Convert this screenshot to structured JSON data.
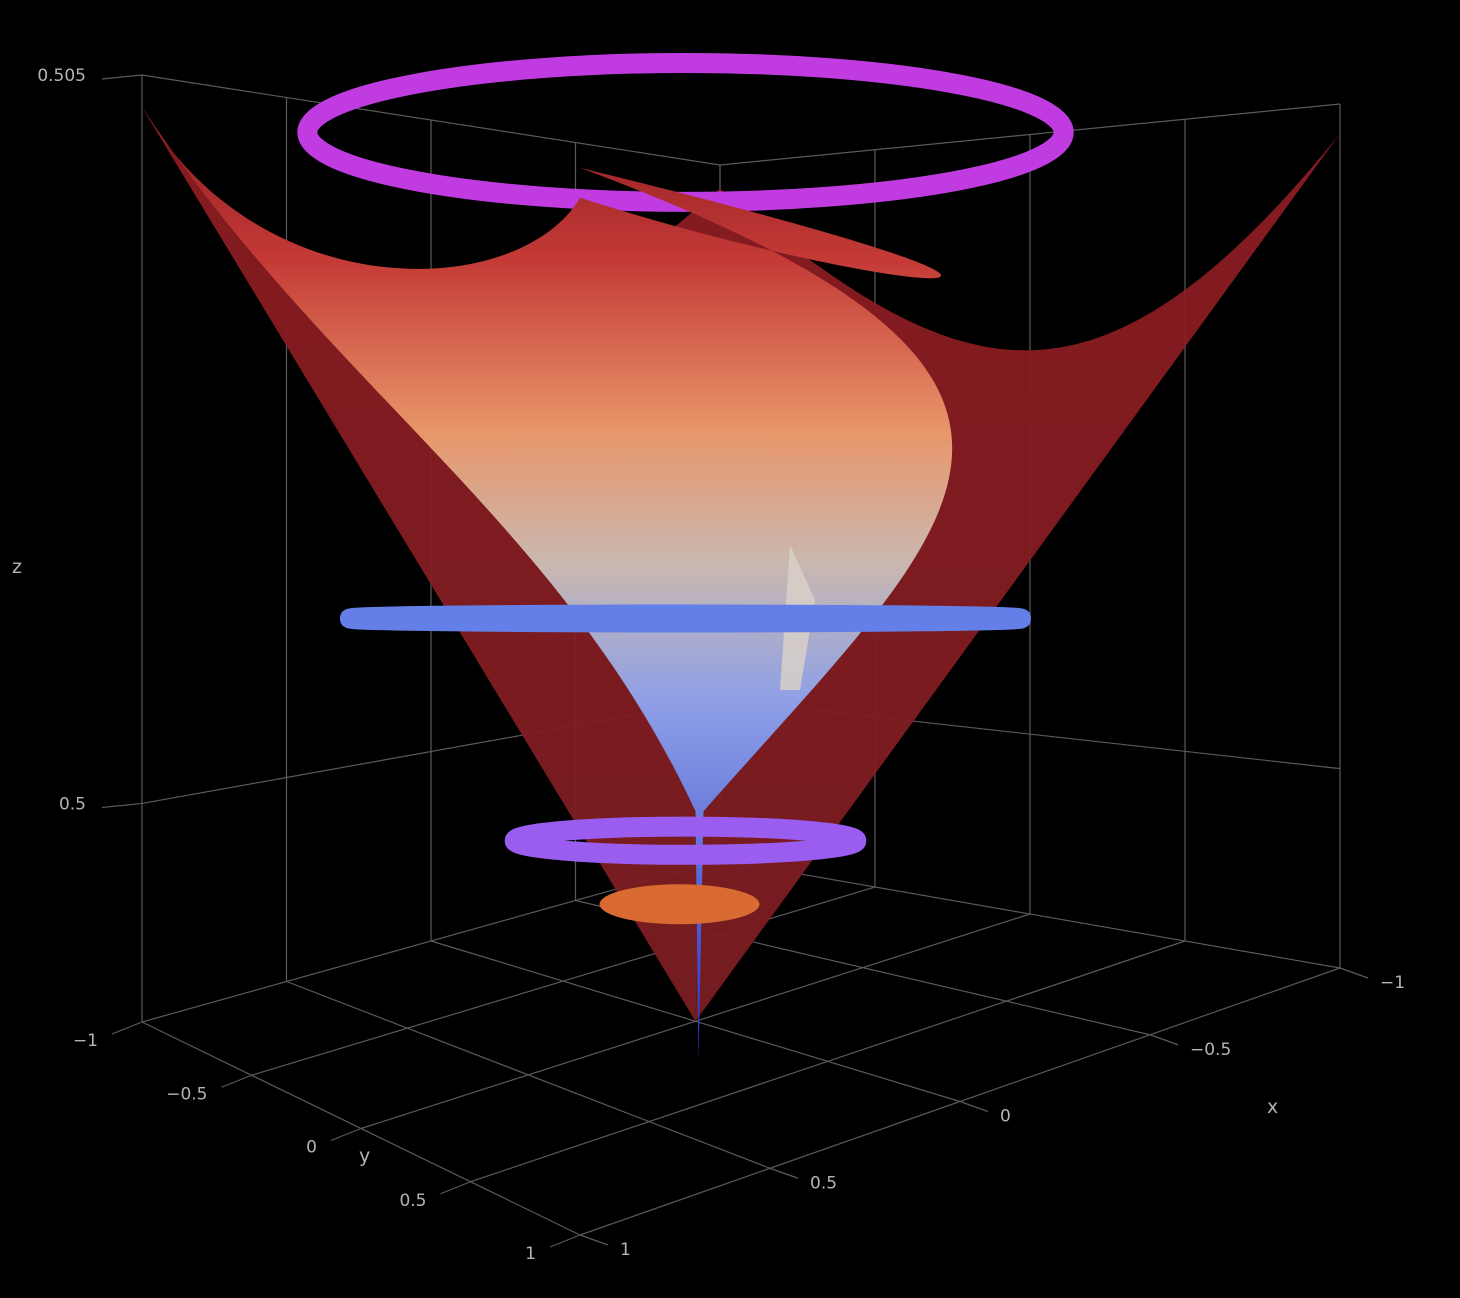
{
  "chart_data": {
    "type": "surface",
    "title": "",
    "background": "#000000",
    "grid": true,
    "axes": {
      "x": {
        "label": "x",
        "range": [
          -1,
          1
        ],
        "ticks": [
          "1",
          "0.5",
          "0",
          "−0.5",
          "−1"
        ]
      },
      "y": {
        "label": "y",
        "range": [
          -1,
          1
        ],
        "ticks": [
          "1",
          "0.5",
          "0",
          "−0.5",
          "−1"
        ]
      },
      "z": {
        "label": "z",
        "range": [
          0.4985,
          0.505
        ],
        "ticks": [
          "0.505",
          "0.5"
        ]
      }
    },
    "surface": {
      "shape": "funnel with four raised corners",
      "z_center": 0.4985,
      "z_edge_mid": 0.5032,
      "z_corner": 0.5048,
      "colorscale": [
        "#3344dd",
        "#8fa0e6",
        "#c9b8b0",
        "#e8966a",
        "#c43a36",
        "#8c1c22"
      ]
    },
    "rings": [
      {
        "z": 0.5049,
        "radius": 0.62,
        "color": "#c03ce0"
      },
      {
        "z": 0.5014,
        "radius": 0.55,
        "color": "#6480e8"
      },
      {
        "z": 0.4998,
        "radius": 0.28,
        "color": "#9b5cf0"
      },
      {
        "z": 0.4994,
        "radius": 0.22,
        "color": "#d96a32"
      }
    ]
  }
}
